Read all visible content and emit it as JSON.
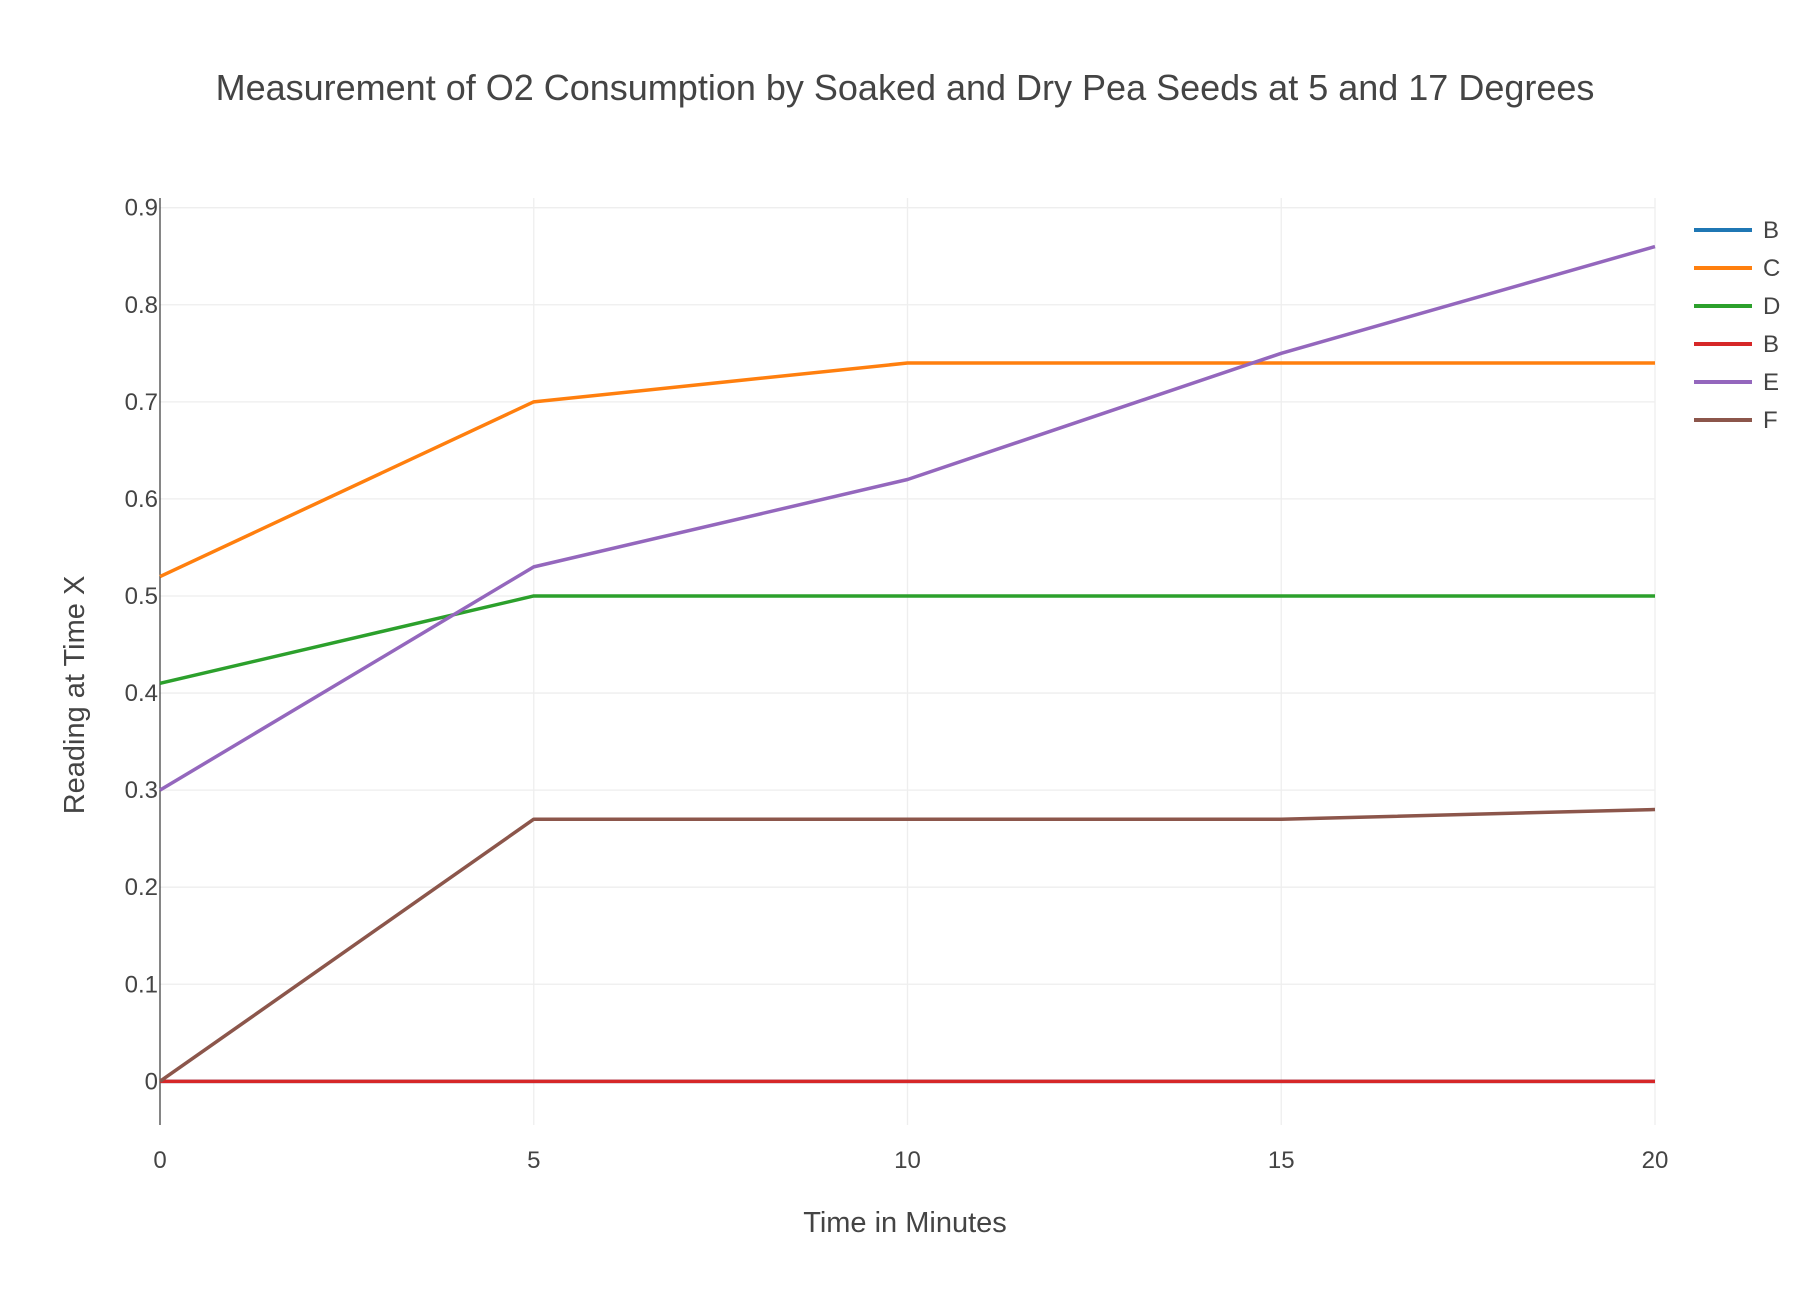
{
  "chart_data": {
    "type": "line",
    "title": "Measurement of O2 Consumption by Soaked and Dry Pea Seeds at 5 and 17 Degrees",
    "xlabel": "Time in Minutes",
    "ylabel": "Reading at Time X",
    "x": [
      0,
      5,
      10,
      15,
      20
    ],
    "xlim": [
      0,
      20
    ],
    "ylim": [
      -0.045,
      0.91
    ],
    "xticks": [
      "0",
      "5",
      "10",
      "15",
      "20"
    ],
    "yticks": [
      "0",
      "0.1",
      "0.2",
      "0.3",
      "0.4",
      "0.5",
      "0.6",
      "0.7",
      "0.8",
      "0.9"
    ],
    "grid": true,
    "legend_position": "top-right",
    "series": [
      {
        "name": "B",
        "color": "#1f77b4",
        "values": [
          0,
          0,
          0,
          0,
          0
        ]
      },
      {
        "name": "C",
        "color": "#ff7f0e",
        "values": [
          0.52,
          0.7,
          0.74,
          0.74,
          0.74
        ]
      },
      {
        "name": "D",
        "color": "#2ca02c",
        "values": [
          0.41,
          0.5,
          0.5,
          0.5,
          0.5
        ]
      },
      {
        "name": "B",
        "color": "#d62728",
        "values": [
          0,
          0,
          0,
          0,
          0
        ]
      },
      {
        "name": "E",
        "color": "#9467bd",
        "values": [
          0.3,
          0.53,
          0.62,
          0.75,
          0.86
        ]
      },
      {
        "name": "F",
        "color": "#8c564b",
        "values": [
          0,
          0.27,
          0.27,
          0.27,
          0.28
        ]
      }
    ]
  }
}
